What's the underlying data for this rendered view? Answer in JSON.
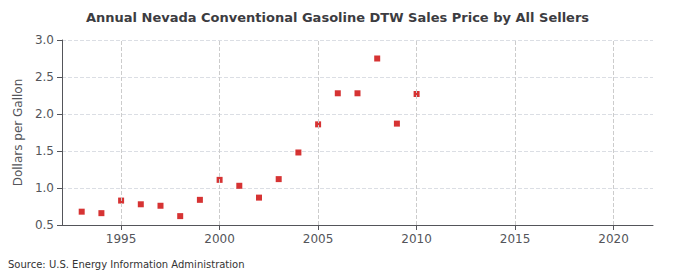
{
  "chart_data": {
    "type": "scatter",
    "title": "Annual Nevada Conventional Gasoline DTW Sales Price by All Sellers",
    "ylabel": "Dollars per Gallon",
    "annotations": [
      "Source: U.S. Energy Information Administration"
    ],
    "x": [
      1993,
      1994,
      1995,
      1996,
      1997,
      1998,
      1999,
      2000,
      2001,
      2002,
      2003,
      2004,
      2005,
      2006,
      2007,
      2008,
      2009,
      2010
    ],
    "values": [
      0.68,
      0.66,
      0.83,
      0.78,
      0.76,
      0.62,
      0.84,
      1.11,
      1.03,
      0.87,
      1.12,
      1.48,
      1.86,
      2.28,
      2.28,
      2.75,
      1.87,
      2.27
    ],
    "color": "#cc0000",
    "marker": "square",
    "xlim": [
      1992,
      2022
    ],
    "xticks": [
      1995,
      2000,
      2005,
      2010,
      2015,
      2020
    ],
    "ylim": [
      0.5,
      3.0
    ],
    "yticks": [
      0.5,
      {
        "value": 1,
        "label": "1.0"
      },
      1.5,
      {
        "value": 2,
        "label": "2.0"
      },
      2.5,
      {
        "value": 3,
        "label": "3.0"
      }
    ],
    "grid": true
  }
}
